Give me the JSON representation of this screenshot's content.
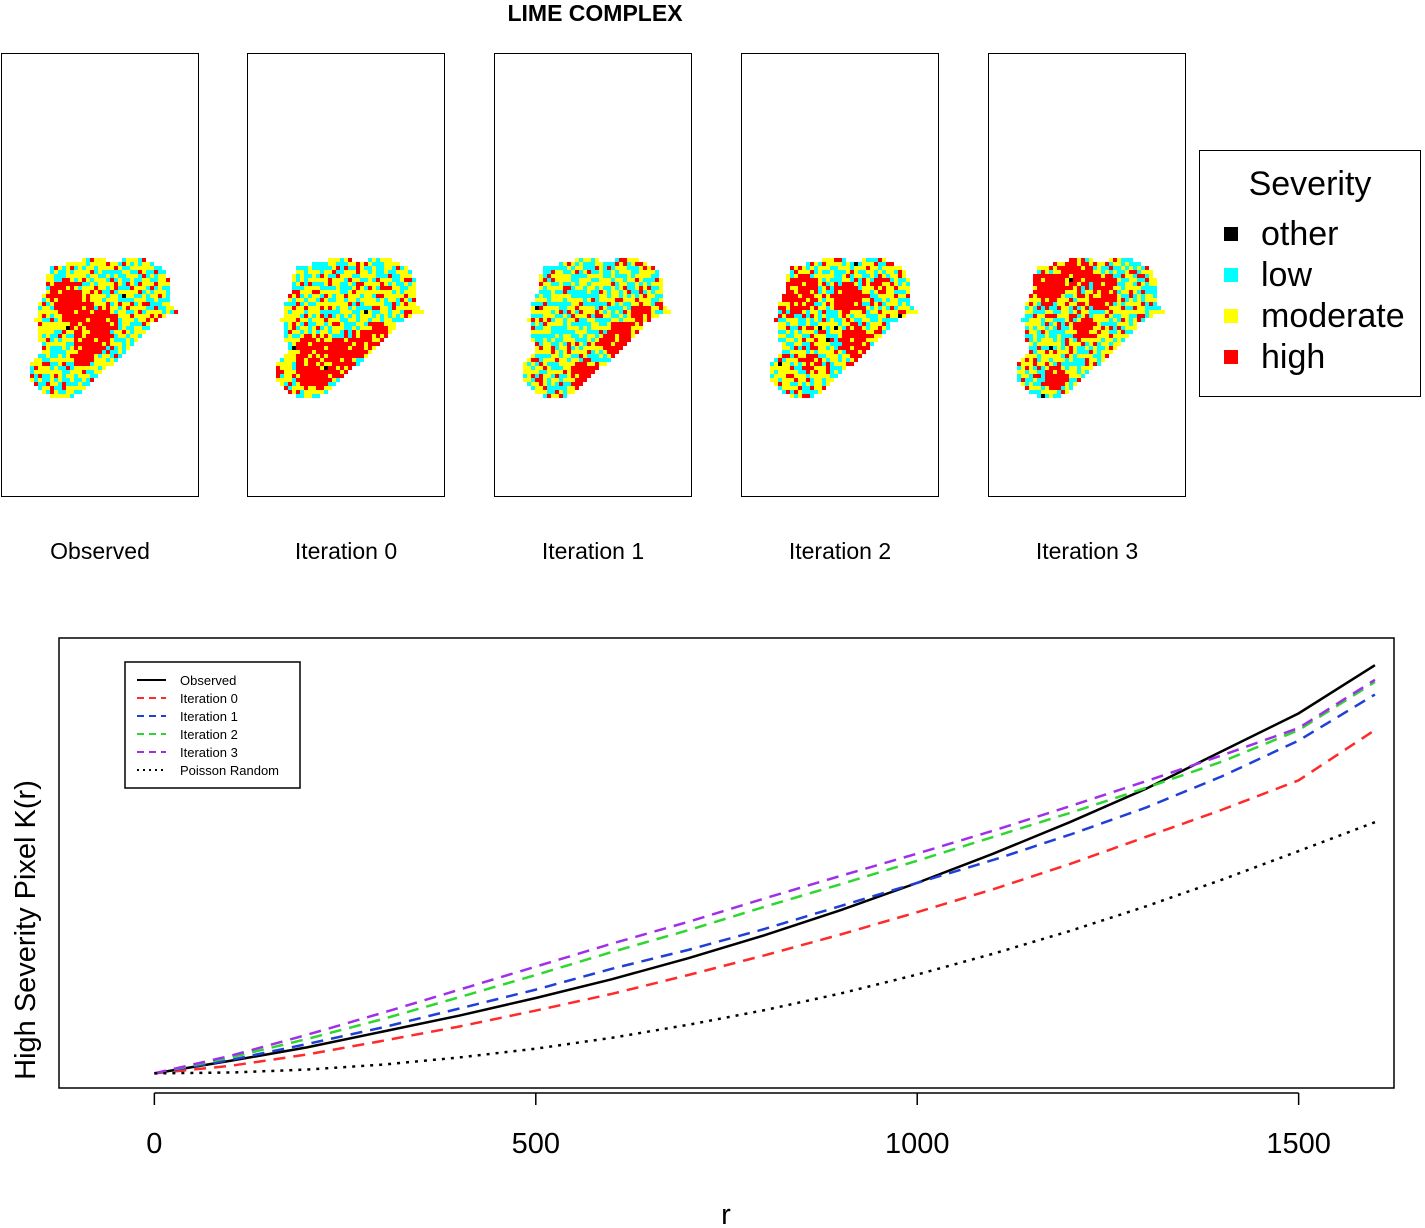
{
  "figure": {
    "title": "LIME COMPLEX"
  },
  "maps": [
    {
      "label": "Observed",
      "high_share": 0.25,
      "low_share": 0.35,
      "seed": 11
    },
    {
      "label": "Iteration 0",
      "high_share": 0.22,
      "low_share": 0.33,
      "seed": 23
    },
    {
      "label": "Iteration 1",
      "high_share": 0.28,
      "low_share": 0.37,
      "seed": 37
    },
    {
      "label": "Iteration 2",
      "high_share": 0.3,
      "low_share": 0.36,
      "seed": 41
    },
    {
      "label": "Iteration 3",
      "high_share": 0.29,
      "low_share": 0.38,
      "seed": 53
    }
  ],
  "severity_legend": {
    "title": "Severity",
    "items": [
      {
        "label": "other",
        "color": "#000000"
      },
      {
        "label": "low",
        "color": "#00ffff"
      },
      {
        "label": "moderate",
        "color": "#ffff00"
      },
      {
        "label": "high",
        "color": "#ff0000"
      }
    ]
  },
  "chart_data": {
    "type": "line",
    "xlabel": "r",
    "ylabel": "High Severity Pixel K(r)",
    "xlim": [
      -125,
      1625
    ],
    "ylim": [
      -0.35,
      10.4
    ],
    "xticks": [
      0,
      500,
      1000,
      1500
    ],
    "y_tick_labels_shown": false,
    "grid": false,
    "legend_position": "top-left",
    "series": [
      {
        "name": "Observed",
        "color": "#000000",
        "dash": "solid",
        "x": [
          0,
          100,
          200,
          300,
          400,
          500,
          600,
          700,
          800,
          900,
          1000,
          1100,
          1200,
          1300,
          1400,
          1500,
          1600
        ],
        "y": [
          0,
          0.3,
          0.62,
          1.0,
          1.38,
          1.8,
          2.25,
          2.75,
          3.3,
          3.9,
          4.55,
          5.25,
          6.0,
          6.8,
          7.7,
          8.6,
          9.75
        ]
      },
      {
        "name": "Iteration 0",
        "color": "#ff2a2a",
        "dash": "dashed",
        "x": [
          0,
          100,
          200,
          300,
          400,
          500,
          600,
          700,
          800,
          900,
          1000,
          1100,
          1200,
          1300,
          1400,
          1500,
          1600
        ],
        "y": [
          0,
          0.18,
          0.45,
          0.78,
          1.12,
          1.5,
          1.9,
          2.35,
          2.82,
          3.32,
          3.85,
          4.4,
          5.0,
          5.65,
          6.3,
          7.0,
          8.2
        ]
      },
      {
        "name": "Iteration 1",
        "color": "#1f3fd6",
        "dash": "dashed",
        "x": [
          0,
          100,
          200,
          300,
          400,
          500,
          600,
          700,
          800,
          900,
          1000,
          1100,
          1200,
          1300,
          1400,
          1500,
          1600
        ],
        "y": [
          0,
          0.32,
          0.7,
          1.1,
          1.55,
          2.0,
          2.5,
          2.95,
          3.45,
          4.0,
          4.55,
          5.1,
          5.7,
          6.35,
          7.1,
          7.95,
          9.05
        ]
      },
      {
        "name": "Iteration 2",
        "color": "#2fd62f",
        "dash": "dashed",
        "x": [
          0,
          100,
          200,
          300,
          400,
          500,
          600,
          700,
          800,
          900,
          1000,
          1100,
          1200,
          1300,
          1400,
          1500,
          1600
        ],
        "y": [
          0,
          0.38,
          0.82,
          1.3,
          1.82,
          2.35,
          2.9,
          3.42,
          3.98,
          4.52,
          5.08,
          5.65,
          6.22,
          6.82,
          7.45,
          8.2,
          9.35
        ]
      },
      {
        "name": "Iteration 3",
        "color": "#a030e8",
        "dash": "dashed",
        "x": [
          0,
          100,
          200,
          300,
          400,
          500,
          600,
          700,
          800,
          900,
          1000,
          1100,
          1200,
          1300,
          1400,
          1500,
          1600
        ],
        "y": [
          0,
          0.42,
          0.92,
          1.45,
          2.0,
          2.55,
          3.1,
          3.62,
          4.18,
          4.72,
          5.25,
          5.8,
          6.38,
          6.98,
          7.6,
          8.25,
          9.4
        ]
      },
      {
        "name": "Poisson Random",
        "color": "#000000",
        "dash": "dotted",
        "x": [
          0,
          100,
          200,
          300,
          400,
          500,
          600,
          700,
          800,
          900,
          1000,
          1100,
          1200,
          1300,
          1400,
          1500,
          1600
        ],
        "y": [
          0,
          0.02,
          0.09,
          0.21,
          0.38,
          0.59,
          0.85,
          1.16,
          1.51,
          1.91,
          2.36,
          2.86,
          3.4,
          3.99,
          4.63,
          5.31,
          6.0
        ]
      }
    ]
  }
}
